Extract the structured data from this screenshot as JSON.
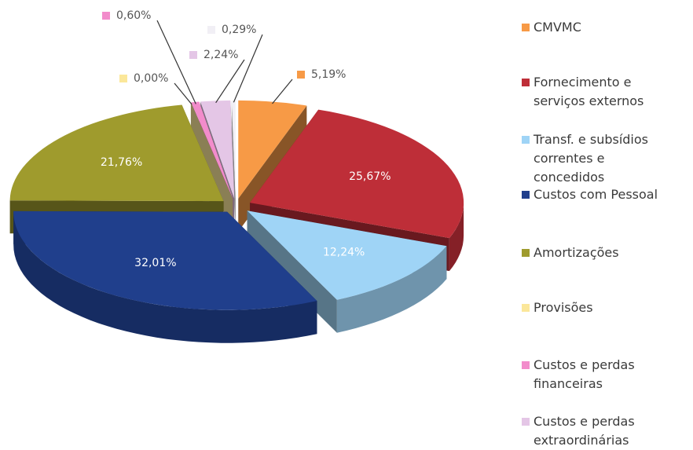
{
  "chart_data": {
    "type": "pie",
    "categories": [
      "CMVMC",
      "Fornecimento e serviços externos",
      "Transf. e subsídios correntes e concedidos",
      "Custos com Pessoal",
      "Amortizações",
      "Provisões",
      "Custos e perdas financeiras",
      "Custos e perdas extraordinárias",
      null
    ],
    "values": [
      5.19,
      25.67,
      12.24,
      32.01,
      21.76,
      0,
      0.6,
      2.24,
      0.29
    ],
    "value_labels": [
      "5,19%",
      "25,67%",
      "12,24%",
      "32,01%",
      "21,76%",
      "0,00%",
      "0,60%",
      "2,24%",
      "0,29%"
    ],
    "colors": [
      "#f79a46",
      "#be2e38",
      "#9fd4f6",
      "#203f8c",
      "#9f9b2d",
      "#fbe79a",
      "#f28ccb",
      "#e4c6e6",
      "#f1eff5"
    ],
    "legend": "right"
  }
}
